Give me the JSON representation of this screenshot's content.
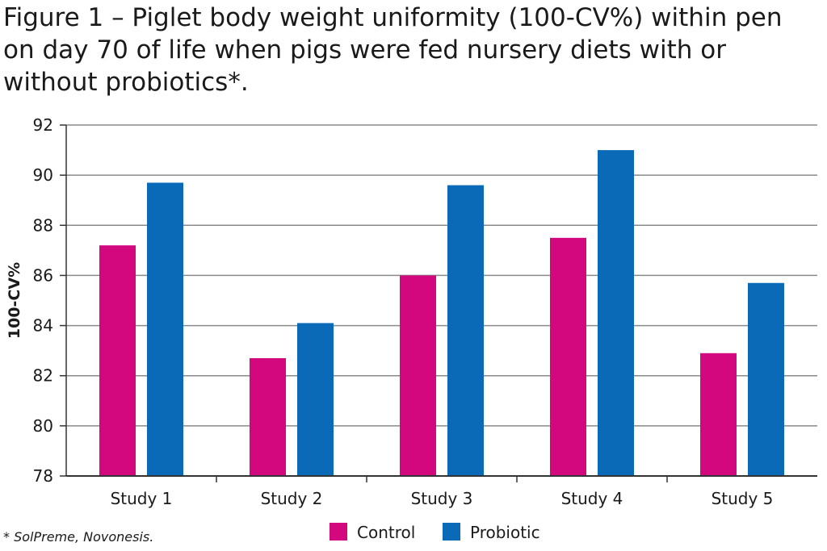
{
  "title": "Figure 1 – Piglet body weight uniformity (100-CV%) within pen on day 70 of life when pigs were fed nursery diets with or without probiotics*.",
  "footnote": "* SolPreme, Novonesis.",
  "colors": {
    "control": "#d4087e",
    "probiotic": "#0a6ab8",
    "grid": "#8a8a8a",
    "axis": "#333333"
  },
  "chart_data": {
    "type": "bar",
    "categories": [
      "Study 1",
      "Study 2",
      "Study 3",
      "Study 4",
      "Study 5"
    ],
    "series": [
      {
        "name": "Control",
        "values": [
          87.2,
          82.7,
          86.0,
          87.5,
          82.9
        ]
      },
      {
        "name": "Probiotic",
        "values": [
          89.7,
          84.1,
          89.6,
          91.0,
          85.7
        ]
      }
    ],
    "ylabel": "100-CV%",
    "ylim": [
      78,
      92
    ],
    "yticks": [
      78,
      80,
      82,
      84,
      86,
      88,
      90,
      92
    ],
    "grid": true,
    "legend_position": "bottom-center"
  }
}
